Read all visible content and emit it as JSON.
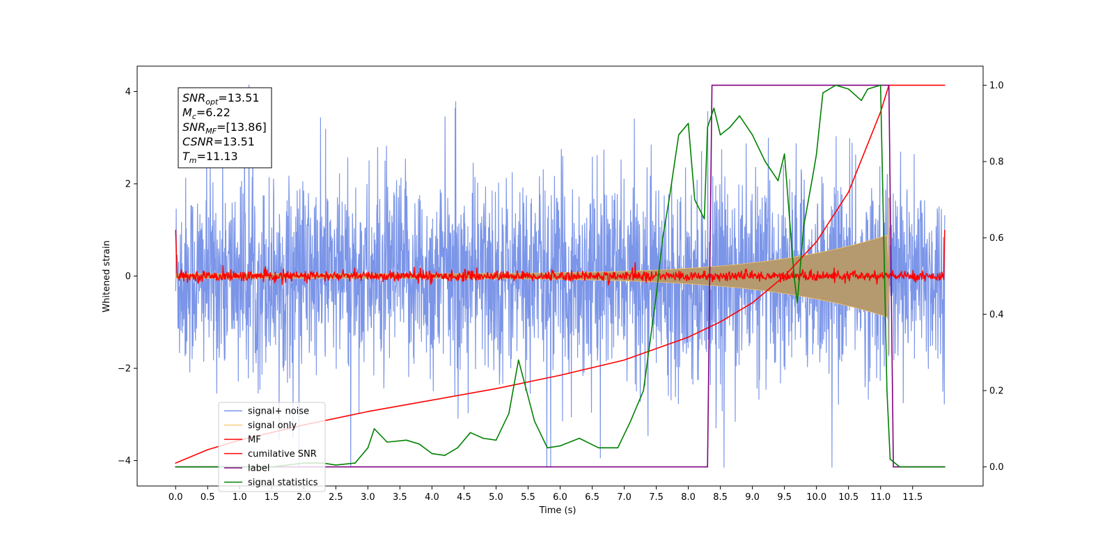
{
  "chart_data": {
    "type": "line",
    "xlabel": "Time (s)",
    "ylabel": "Whitened strain",
    "ylabel_right": "",
    "xlim": [
      -0.6,
      12.6
    ],
    "ylim": [
      -4.55,
      4.55
    ],
    "ylim_right": [
      -0.05,
      1.05
    ],
    "x_ticks": [
      "0.0",
      "0.5",
      "1.0",
      "1.5",
      "2.0",
      "2.5",
      "3.0",
      "3.5",
      "4.0",
      "4.5",
      "5.0",
      "5.5",
      "6.0",
      "6.5",
      "7.0",
      "7.5",
      "8.0",
      "8.5",
      "9.0",
      "9.5",
      "10.0",
      "10.5",
      "11.0",
      "11.5"
    ],
    "y_ticks_left": [
      "4",
      "2",
      "0",
      "−2",
      "−4"
    ],
    "y_ticks_right": [
      "1.0",
      "0.8",
      "0.6",
      "0.4",
      "0.2",
      "0.0"
    ],
    "grid": false,
    "legend_position": "lower-left",
    "annotation": [
      {
        "base": "SNR",
        "sub": "opt",
        "value": "=13.51"
      },
      {
        "base": "M",
        "sub": "c",
        "value": "=6.22"
      },
      {
        "base": "SNR",
        "sub": "MF",
        "value": "=[13.86]"
      },
      {
        "base": "CSNR",
        "sub": "",
        "value": "=13.51"
      },
      {
        "base": "T",
        "sub": "m",
        "value": "=11.13"
      }
    ],
    "series": [
      {
        "name": "signal+ noise",
        "color": "#7b95e8",
        "axis": "left",
        "description": "white noise, amplitude about ±2.5 with spikes to ±4, x 0.0–12.0"
      },
      {
        "name": "signal only",
        "color": "#f5c26b",
        "axis": "left",
        "description": "chirp envelope growing from ±0.05 at 0 s to ±0.9 at 11.13 s, then zero"
      },
      {
        "name": "MF",
        "color": "#ff0000",
        "axis": "left",
        "description": "matched-filter output near 0 with small fluctuations, edges near 1.0"
      },
      {
        "name": "cumilative SNR",
        "color": "#ff0000",
        "axis": "right",
        "x": [
          0.0,
          0.5,
          1.0,
          2.0,
          3.0,
          4.0,
          5.0,
          6.0,
          7.0,
          8.0,
          8.5,
          9.0,
          9.5,
          10.0,
          10.5,
          11.0,
          11.13,
          12.0
        ],
        "y": [
          0.01,
          0.045,
          0.07,
          0.11,
          0.145,
          0.175,
          0.205,
          0.24,
          0.28,
          0.34,
          0.38,
          0.43,
          0.5,
          0.59,
          0.72,
          0.93,
          1.0,
          1.0
        ]
      },
      {
        "name": "label",
        "color": "#800080",
        "axis": "right",
        "x": [
          0.0,
          8.3,
          8.37,
          11.13,
          11.2,
          12.0
        ],
        "y": [
          0.0,
          0.0,
          1.0,
          1.0,
          0.0,
          0.0
        ]
      },
      {
        "name": "signal statistics",
        "color": "#008000",
        "axis": "right",
        "x": [
          0.0,
          0.5,
          1.0,
          1.5,
          2.0,
          2.3,
          2.5,
          2.8,
          3.0,
          3.1,
          3.3,
          3.6,
          3.8,
          4.0,
          4.2,
          4.4,
          4.6,
          4.8,
          5.0,
          5.2,
          5.35,
          5.6,
          5.8,
          6.0,
          6.3,
          6.6,
          6.9,
          7.1,
          7.3,
          7.5,
          7.6,
          7.7,
          7.85,
          8.0,
          8.1,
          8.25,
          8.3,
          8.4,
          8.5,
          8.65,
          8.8,
          9.0,
          9.2,
          9.4,
          9.5,
          9.65,
          9.7,
          9.8,
          9.95,
          10.0,
          10.1,
          10.3,
          10.5,
          10.7,
          10.8,
          11.0,
          11.1,
          11.15,
          11.3,
          11.5,
          12.0
        ],
        "y": [
          0.0,
          0.0,
          0.0,
          0.0,
          0.01,
          0.01,
          0.005,
          0.01,
          0.05,
          0.1,
          0.065,
          0.07,
          0.06,
          0.035,
          0.03,
          0.05,
          0.09,
          0.075,
          0.07,
          0.14,
          0.28,
          0.12,
          0.05,
          0.055,
          0.075,
          0.05,
          0.05,
          0.12,
          0.2,
          0.45,
          0.6,
          0.7,
          0.87,
          0.9,
          0.7,
          0.65,
          0.89,
          0.94,
          0.87,
          0.89,
          0.92,
          0.87,
          0.8,
          0.75,
          0.82,
          0.5,
          0.43,
          0.63,
          0.77,
          0.82,
          0.98,
          1.0,
          0.99,
          0.96,
          0.99,
          1.0,
          0.2,
          0.02,
          0.0,
          0.0,
          0.0
        ]
      }
    ]
  }
}
